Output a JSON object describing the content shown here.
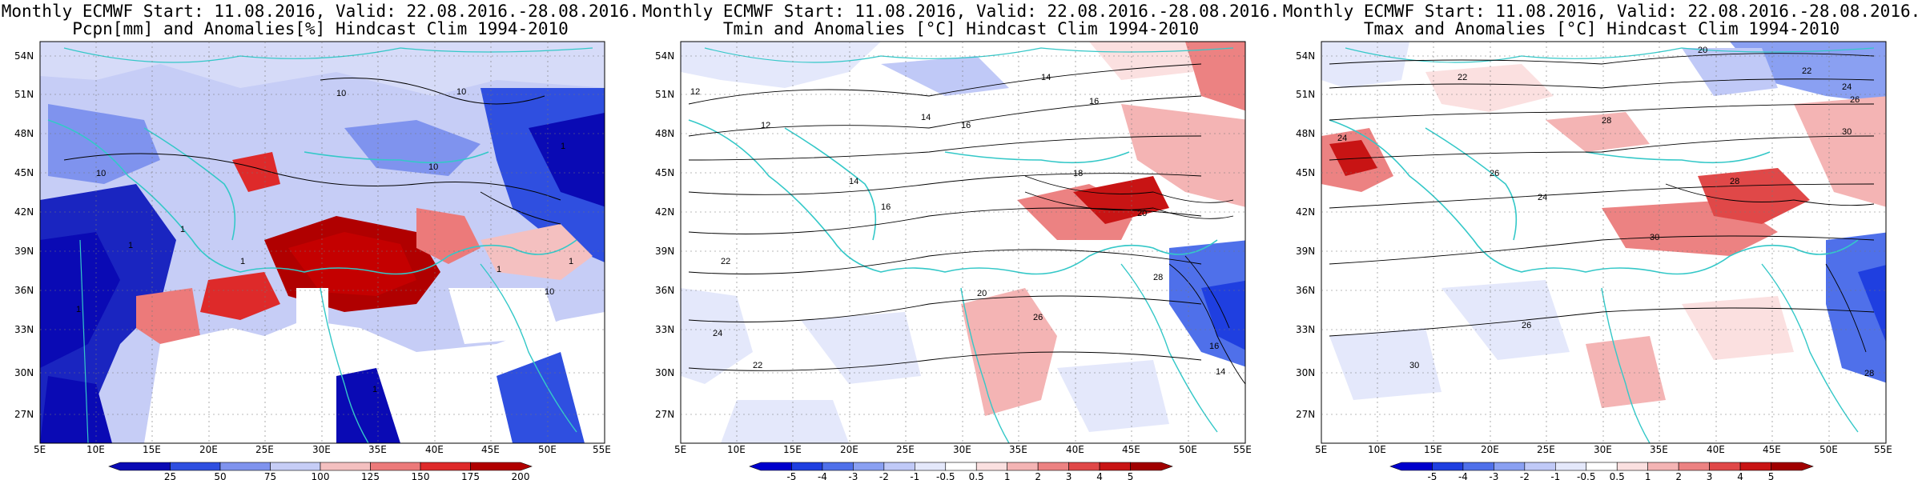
{
  "panels": [
    {
      "title1": "Monthly ECMWF Start: 11.08.2016, Valid: 22.08.2016.-28.08.2016.",
      "title2": "Pcpn[mm] and Anomalies[%] Hindcast Clim 1994-2010",
      "colorbar": {
        "labels": [
          "25",
          "50",
          "75",
          "100",
          "125",
          "150",
          "175",
          "200"
        ],
        "colors": [
          "#0a0ab4",
          "#2f4fe0",
          "#7f93ee",
          "#c6cdf6",
          "#f4c0c0",
          "#ec7a7a",
          "#de2a2a",
          "#b00000"
        ]
      },
      "contour_labels": [
        "10",
        "10",
        "10",
        "10",
        "1",
        "1",
        "1",
        "1",
        "1",
        "1",
        "1",
        "10",
        "1"
      ]
    },
    {
      "title1": "Monthly ECMWF Start: 11.08.2016, Valid: 22.08.2016.-28.08.2016.",
      "title2": "Tmin and Anomalies [°C] Hindcast Clim 1994-2010",
      "colorbar": {
        "labels": [
          "-5",
          "-4",
          "-3",
          "-2",
          "-1",
          "-0.5",
          "0.5",
          "1",
          "2",
          "3",
          "4",
          "5"
        ],
        "colors": [
          "#0000cc",
          "#1f3fe0",
          "#4f70ea",
          "#8aa0f2",
          "#c0c9f7",
          "#e4e8fb",
          "#ffffff",
          "#fbe0e0",
          "#f4b4b4",
          "#ec8282",
          "#e04848",
          "#c81414",
          "#a00000"
        ]
      },
      "contour_labels": [
        "12",
        "14",
        "16",
        "16",
        "14",
        "12",
        "14",
        "16",
        "18",
        "20",
        "22",
        "24",
        "22",
        "20",
        "26",
        "28",
        "14",
        "16"
      ]
    },
    {
      "title1": "Monthly ECMWF Start: 11.08.2016, Valid: 22.08.2016.-28.08.2016.",
      "title2": "Tmax and Anomalies [°C] Hindcast Clim 1994-2010",
      "colorbar": {
        "labels": [
          "-5",
          "-4",
          "-3",
          "-2",
          "-1",
          "-0.5",
          "0.5",
          "1",
          "2",
          "3",
          "4",
          "5"
        ],
        "colors": [
          "#0000cc",
          "#1f3fe0",
          "#4f70ea",
          "#8aa0f2",
          "#c0c9f7",
          "#e4e8fb",
          "#ffffff",
          "#fbe0e0",
          "#f4b4b4",
          "#ec8282",
          "#e04848",
          "#c81414",
          "#a00000"
        ]
      },
      "contour_labels": [
        "20",
        "22",
        "24",
        "26",
        "28",
        "30",
        "22",
        "24",
        "26",
        "28",
        "30",
        "24",
        "26",
        "30",
        "28"
      ]
    }
  ],
  "lat_labels": [
    "54N",
    "51N",
    "48N",
    "45N",
    "42N",
    "39N",
    "36N",
    "33N",
    "30N",
    "27N"
  ],
  "lon_labels": [
    "5E",
    "10E",
    "15E",
    "20E",
    "25E",
    "30E",
    "35E",
    "40E",
    "45E",
    "50E",
    "55E"
  ]
}
